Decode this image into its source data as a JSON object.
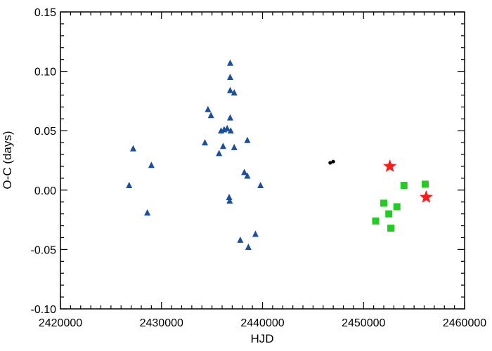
{
  "chart_data": {
    "type": "scatter",
    "title": "",
    "xlabel": "HJD",
    "ylabel": "O-C (days)",
    "xlim": [
      2420000,
      2460000
    ],
    "ylim": [
      -0.1,
      0.15
    ],
    "grid": false,
    "legend": "none",
    "x_ticks": [
      {
        "value": 2420000,
        "label": "2420000"
      },
      {
        "value": 2430000,
        "label": "2430000"
      },
      {
        "value": 2440000,
        "label": "2440000"
      },
      {
        "value": 2450000,
        "label": "2450000"
      },
      {
        "value": 2460000,
        "label": "2460000"
      }
    ],
    "y_ticks": [
      {
        "value": -0.1,
        "label": "-0.10"
      },
      {
        "value": -0.05,
        "label": "-0.05"
      },
      {
        "value": 0.0,
        "label": "0.00"
      },
      {
        "value": 0.05,
        "label": "0.05"
      },
      {
        "value": 0.1,
        "label": "0.10"
      },
      {
        "value": 0.15,
        "label": "0.15"
      }
    ],
    "series": [
      {
        "marker": "triangle",
        "color": "#1a4fa0",
        "points": [
          {
            "x": 2426800,
            "y": 0.004
          },
          {
            "x": 2427200,
            "y": 0.035
          },
          {
            "x": 2428600,
            "y": -0.019
          },
          {
            "x": 2429000,
            "y": 0.021
          },
          {
            "x": 2434300,
            "y": 0.04
          },
          {
            "x": 2434600,
            "y": 0.068
          },
          {
            "x": 2434900,
            "y": 0.063
          },
          {
            "x": 2435700,
            "y": 0.031
          },
          {
            "x": 2435900,
            "y": 0.05
          },
          {
            "x": 2436100,
            "y": 0.037
          },
          {
            "x": 2436200,
            "y": 0.051
          },
          {
            "x": 2436500,
            "y": 0.052
          },
          {
            "x": 2436700,
            "y": -0.006
          },
          {
            "x": 2436750,
            "y": -0.009
          },
          {
            "x": 2436800,
            "y": 0.107
          },
          {
            "x": 2436800,
            "y": 0.095
          },
          {
            "x": 2436800,
            "y": 0.084
          },
          {
            "x": 2436800,
            "y": 0.061
          },
          {
            "x": 2436850,
            "y": 0.05
          },
          {
            "x": 2437200,
            "y": 0.082
          },
          {
            "x": 2437200,
            "y": 0.036
          },
          {
            "x": 2437800,
            "y": -0.042
          },
          {
            "x": 2438200,
            "y": 0.015
          },
          {
            "x": 2438500,
            "y": 0.012
          },
          {
            "x": 2438500,
            "y": 0.042
          },
          {
            "x": 2438600,
            "y": -0.048
          },
          {
            "x": 2439300,
            "y": -0.037
          },
          {
            "x": 2439800,
            "y": 0.004
          }
        ]
      },
      {
        "marker": "circle",
        "color": "#000000",
        "points": [
          {
            "x": 2446700,
            "y": 0.023
          },
          {
            "x": 2447000,
            "y": 0.024
          }
        ]
      },
      {
        "marker": "square",
        "color": "#22cc22",
        "points": [
          {
            "x": 2451200,
            "y": -0.026
          },
          {
            "x": 2452000,
            "y": -0.011
          },
          {
            "x": 2452500,
            "y": -0.02
          },
          {
            "x": 2452700,
            "y": -0.032
          },
          {
            "x": 2453300,
            "y": -0.014
          },
          {
            "x": 2454000,
            "y": 0.004
          },
          {
            "x": 2456100,
            "y": 0.005
          }
        ]
      },
      {
        "marker": "star",
        "color": "#ff1a1a",
        "points": [
          {
            "x": 2452600,
            "y": 0.02
          },
          {
            "x": 2456200,
            "y": -0.006
          }
        ]
      }
    ]
  }
}
